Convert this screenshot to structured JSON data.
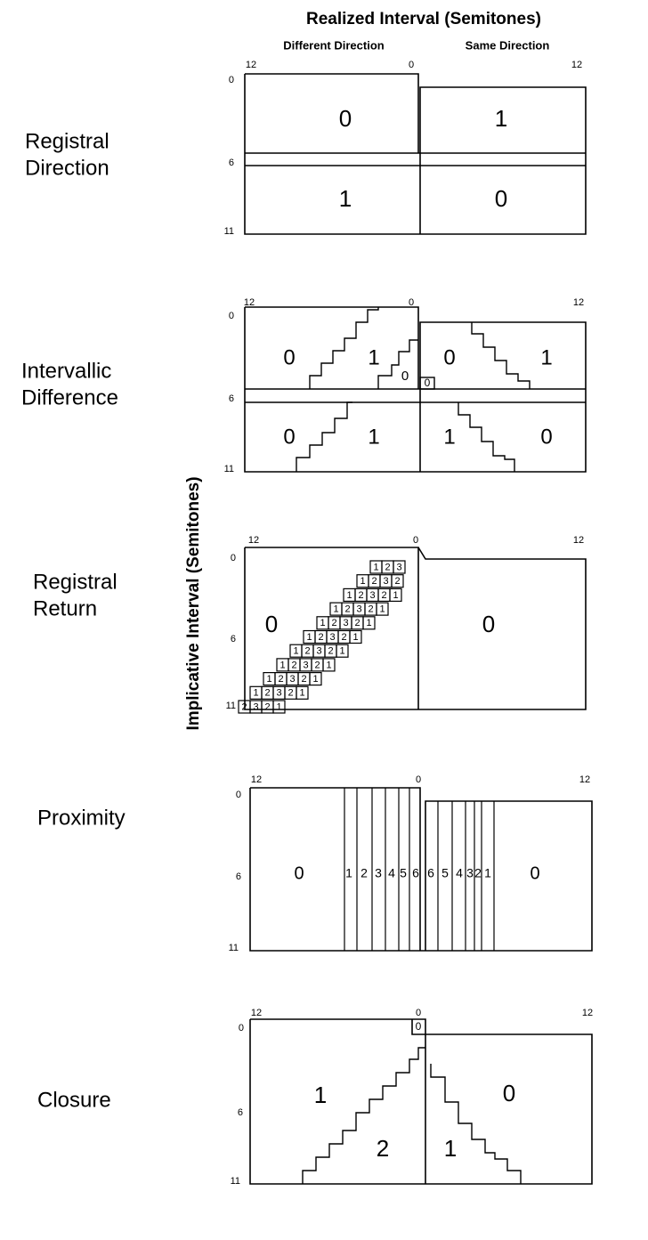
{
  "header": {
    "title": "Realized Interval (Semitones)",
    "left_subtitle": "Different Direction",
    "right_subtitle": "Same Direction"
  },
  "y_axis_label": "Implicative Interval (Semitones)",
  "panels": [
    {
      "label": [
        "Registral",
        "Direction"
      ],
      "ticks": [
        "12",
        "0",
        "12",
        "0",
        "6",
        "11"
      ],
      "regions": [
        "0",
        "1",
        "1",
        "0"
      ]
    },
    {
      "label": [
        "Intervallic",
        "Difference"
      ],
      "ticks": [
        "12",
        "0",
        "12",
        "0",
        "6",
        "11"
      ],
      "regions": [
        "0",
        "1",
        "0",
        "0",
        "1",
        "0",
        "0",
        "1",
        "1",
        "0"
      ]
    },
    {
      "label": [
        "Registral",
        "Return"
      ],
      "ticks": [
        "12",
        "0",
        "12",
        "0",
        "6",
        "11"
      ],
      "regions": [
        "0",
        "0"
      ],
      "grid": [
        [
          "1",
          "2",
          "3"
        ],
        [
          "1",
          "2",
          "3",
          "2"
        ],
        [
          "1",
          "2",
          "3",
          "2",
          "1"
        ],
        [
          "1",
          "2",
          "3",
          "2",
          "1"
        ],
        [
          "1",
          "2",
          "3",
          "2",
          "1"
        ],
        [
          "1",
          "2",
          "3",
          "2",
          "1"
        ],
        [
          "1",
          "2",
          "3",
          "2",
          "1"
        ],
        [
          "1",
          "2",
          "3",
          "2",
          "1"
        ],
        [
          "1",
          "2",
          "3",
          "2",
          "1"
        ],
        [
          "1",
          "2",
          "3",
          "2",
          "1"
        ],
        [
          "2",
          "3",
          "2",
          "1"
        ]
      ]
    },
    {
      "label": [
        "Proximity"
      ],
      "ticks": [
        "12",
        "0",
        "12",
        "0",
        "6",
        "11"
      ],
      "regions": [
        "0",
        "1",
        "2",
        "3",
        "4",
        "5",
        "6",
        "6",
        "5",
        "4",
        "3",
        "2",
        "1",
        "0"
      ]
    },
    {
      "label": [
        "Closure"
      ],
      "ticks": [
        "12",
        "0",
        "12",
        "0",
        "6",
        "11"
      ],
      "regions": [
        "0",
        "1",
        "0",
        "2",
        "1"
      ]
    }
  ]
}
